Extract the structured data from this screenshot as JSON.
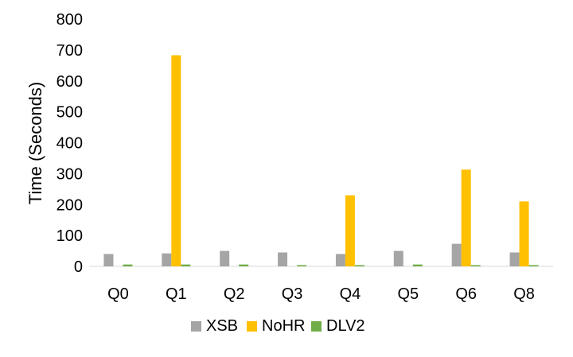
{
  "chart_data": {
    "type": "bar",
    "title": "",
    "xlabel": "",
    "ylabel": "Time (Seconds)",
    "ylim": [
      0,
      800
    ],
    "yticks": [
      "0",
      "100",
      "200",
      "300",
      "400",
      "500",
      "600",
      "700",
      "800"
    ],
    "grid": false,
    "legend_position": "bottom",
    "categories": [
      "Q0",
      "Q1",
      "Q2",
      "Q3",
      "Q4",
      "Q5",
      "Q6",
      "Q8"
    ],
    "series": [
      {
        "name": "XSB",
        "color": "#a5a5a5",
        "values": [
          40,
          42,
          50,
          45,
          40,
          50,
          73,
          45
        ]
      },
      {
        "name": "NoHR",
        "color": "#ffc000",
        "values": [
          0,
          683,
          0,
          0,
          230,
          0,
          313,
          210
        ]
      },
      {
        "name": "DLV2",
        "color": "#70ad47",
        "values": [
          6,
          6,
          6,
          4,
          4,
          6,
          4,
          4
        ]
      }
    ]
  }
}
